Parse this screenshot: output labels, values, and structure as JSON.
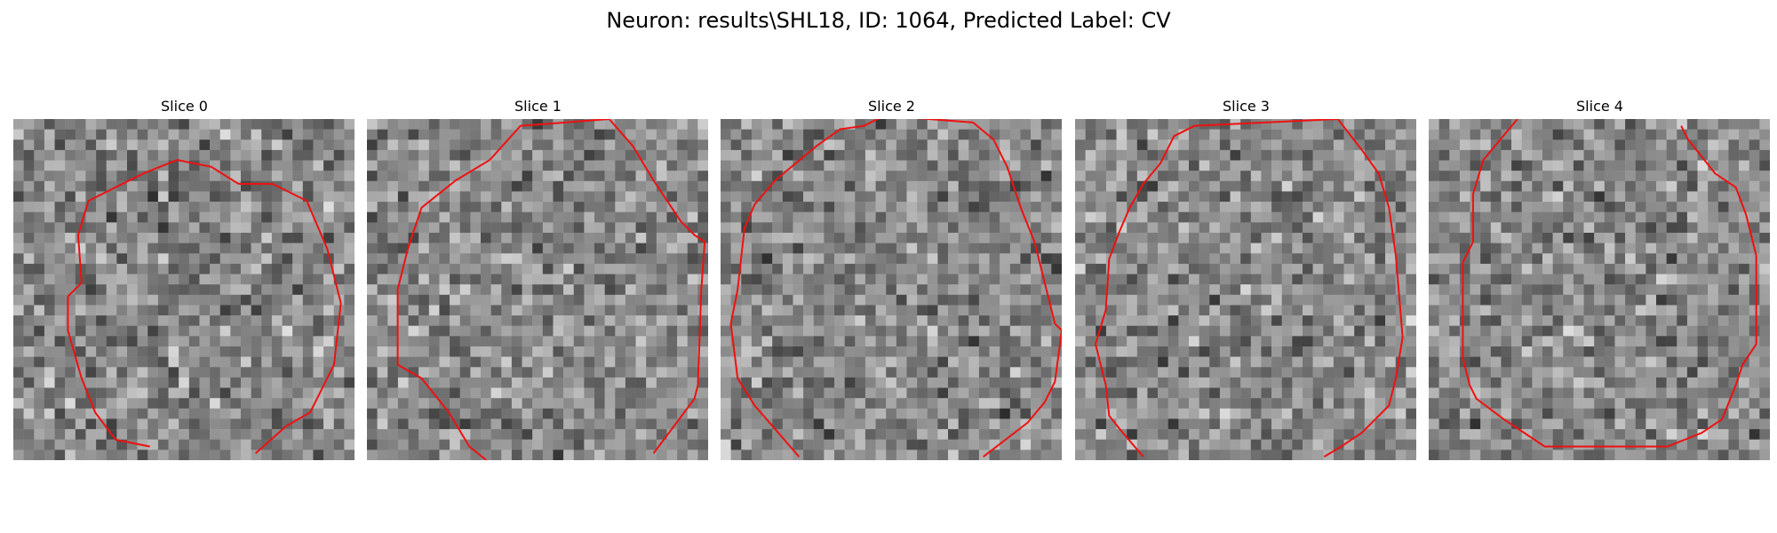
{
  "figure": {
    "title": "Neuron: results\\SHL18, ID: 1064, Predicted Label: CV",
    "contour_color": "#ee1111"
  },
  "slices": [
    {
      "title": "Slice 0",
      "seed": 1064,
      "contour": [
        [
          0.4,
          0.96
        ],
        [
          0.3,
          0.94
        ],
        [
          0.24,
          0.86
        ],
        [
          0.2,
          0.76
        ],
        [
          0.16,
          0.62
        ],
        [
          0.16,
          0.52
        ],
        [
          0.2,
          0.48
        ],
        [
          0.19,
          0.34
        ],
        [
          0.22,
          0.24
        ],
        [
          0.3,
          0.2
        ],
        [
          0.38,
          0.16
        ],
        [
          0.48,
          0.12
        ],
        [
          0.58,
          0.14
        ],
        [
          0.66,
          0.19
        ],
        [
          0.76,
          0.19
        ],
        [
          0.86,
          0.24
        ],
        [
          0.92,
          0.38
        ],
        [
          0.94,
          0.46
        ],
        [
          0.96,
          0.54
        ],
        [
          0.94,
          0.72
        ],
        [
          0.87,
          0.86
        ],
        [
          0.8,
          0.9
        ],
        [
          0.71,
          0.98
        ]
      ]
    },
    {
      "title": "Slice 1",
      "seed": 1065,
      "contour": [
        [
          0.35,
          1.0
        ],
        [
          0.3,
          0.96
        ],
        [
          0.24,
          0.86
        ],
        [
          0.16,
          0.76
        ],
        [
          0.09,
          0.72
        ],
        [
          0.09,
          0.5
        ],
        [
          0.12,
          0.38
        ],
        [
          0.16,
          0.26
        ],
        [
          0.26,
          0.18
        ],
        [
          0.36,
          0.12
        ],
        [
          0.45,
          0.02
        ],
        [
          0.71,
          0.0
        ],
        [
          0.78,
          0.08
        ],
        [
          0.84,
          0.18
        ],
        [
          0.88,
          0.24
        ],
        [
          0.92,
          0.3
        ],
        [
          0.96,
          0.34
        ],
        [
          0.99,
          0.36
        ],
        [
          0.98,
          0.5
        ],
        [
          0.97,
          0.78
        ],
        [
          0.96,
          0.82
        ],
        [
          0.9,
          0.9
        ],
        [
          0.84,
          0.98
        ]
      ]
    },
    {
      "title": "Slice 2",
      "seed": 1066,
      "contour": [
        [
          0.23,
          0.99
        ],
        [
          0.1,
          0.84
        ],
        [
          0.05,
          0.76
        ],
        [
          0.03,
          0.6
        ],
        [
          0.05,
          0.5
        ],
        [
          0.07,
          0.32
        ],
        [
          0.1,
          0.25
        ],
        [
          0.16,
          0.18
        ],
        [
          0.22,
          0.13
        ],
        [
          0.28,
          0.08
        ],
        [
          0.35,
          0.03
        ],
        [
          0.42,
          0.02
        ],
        [
          0.48,
          -0.01
        ],
        [
          0.74,
          0.01
        ],
        [
          0.8,
          0.06
        ],
        [
          0.84,
          0.14
        ],
        [
          0.88,
          0.26
        ],
        [
          0.92,
          0.36
        ],
        [
          0.96,
          0.52
        ],
        [
          0.98,
          0.6
        ],
        [
          1.0,
          0.62
        ],
        [
          0.98,
          0.77
        ],
        [
          0.95,
          0.83
        ],
        [
          0.9,
          0.89
        ],
        [
          0.77,
          0.99
        ]
      ]
    },
    {
      "title": "Slice 3",
      "seed": 1067,
      "contour": [
        [
          0.2,
          0.99
        ],
        [
          0.14,
          0.92
        ],
        [
          0.1,
          0.87
        ],
        [
          0.09,
          0.78
        ],
        [
          0.06,
          0.66
        ],
        [
          0.09,
          0.56
        ],
        [
          0.1,
          0.41
        ],
        [
          0.13,
          0.33
        ],
        [
          0.16,
          0.26
        ],
        [
          0.2,
          0.19
        ],
        [
          0.25,
          0.13
        ],
        [
          0.29,
          0.05
        ],
        [
          0.35,
          0.02
        ],
        [
          0.77,
          0.0
        ],
        [
          0.84,
          0.09
        ],
        [
          0.89,
          0.16
        ],
        [
          0.92,
          0.26
        ],
        [
          0.94,
          0.4
        ],
        [
          0.96,
          0.64
        ],
        [
          0.94,
          0.76
        ],
        [
          0.92,
          0.84
        ],
        [
          0.84,
          0.92
        ],
        [
          0.78,
          0.96
        ],
        [
          0.73,
          0.99
        ]
      ]
    },
    {
      "title": "Slice 4",
      "seed": 1068,
      "contour": [
        [
          0.26,
          0.0
        ],
        [
          0.16,
          0.12
        ],
        [
          0.13,
          0.22
        ],
        [
          0.13,
          0.36
        ],
        [
          0.1,
          0.42
        ],
        [
          0.1,
          0.7
        ],
        [
          0.12,
          0.78
        ],
        [
          0.14,
          0.82
        ],
        [
          0.22,
          0.88
        ],
        [
          0.34,
          0.96
        ],
        [
          0.7,
          0.96
        ],
        [
          0.8,
          0.92
        ],
        [
          0.86,
          0.88
        ],
        [
          0.9,
          0.78
        ],
        [
          0.92,
          0.72
        ],
        [
          0.96,
          0.66
        ],
        [
          0.96,
          0.4
        ],
        [
          0.93,
          0.28
        ],
        [
          0.9,
          0.2
        ],
        [
          0.84,
          0.16
        ],
        [
          0.76,
          0.06
        ],
        [
          0.74,
          0.02
        ]
      ]
    }
  ]
}
